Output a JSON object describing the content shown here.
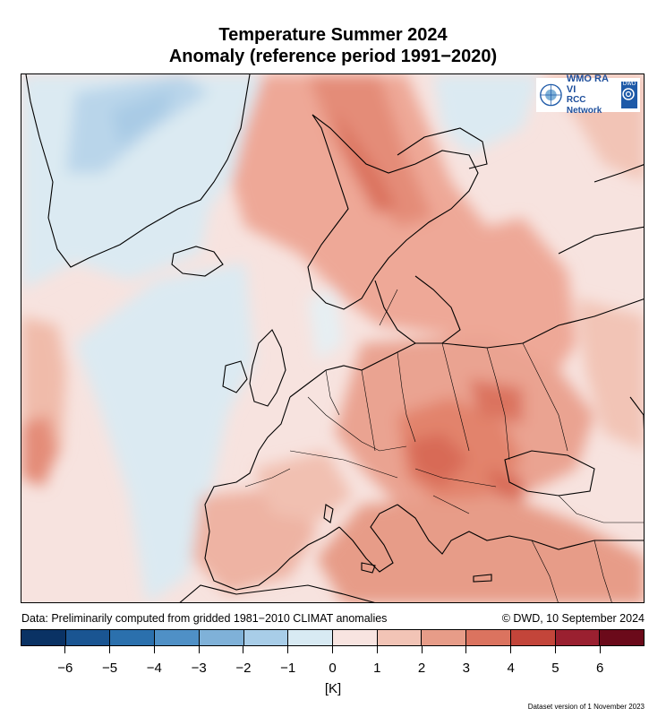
{
  "title_line1": "Temperature Summer 2024",
  "title_line2": "Anomaly (reference period 1991−2020)",
  "logo": {
    "line1": "WMO RA VI",
    "line2": "RCC Network",
    "badge": "DWD"
  },
  "footnote_left": "Data: Preliminarily computed from gridded 1981−2010 CLIMAT anomalies",
  "footnote_right": "© DWD, 10 September 2024",
  "colorbar": {
    "colors": [
      "#0a3264",
      "#1a5592",
      "#2b70ad",
      "#4f90c6",
      "#7fb1d8",
      "#a8cde8",
      "#d8eaf3",
      "#f8e4e0",
      "#f2c4b6",
      "#e79c88",
      "#db735f",
      "#c3453a",
      "#9a2030",
      "#6b0a1a"
    ],
    "tick_values": [
      "−6",
      "−5",
      "−4",
      "−3",
      "−2",
      "−1",
      "0",
      "1",
      "2",
      "3",
      "4",
      "5",
      "6"
    ],
    "unit": "[K]"
  },
  "dataset_note": "Dataset version of 1 November 2023"
}
